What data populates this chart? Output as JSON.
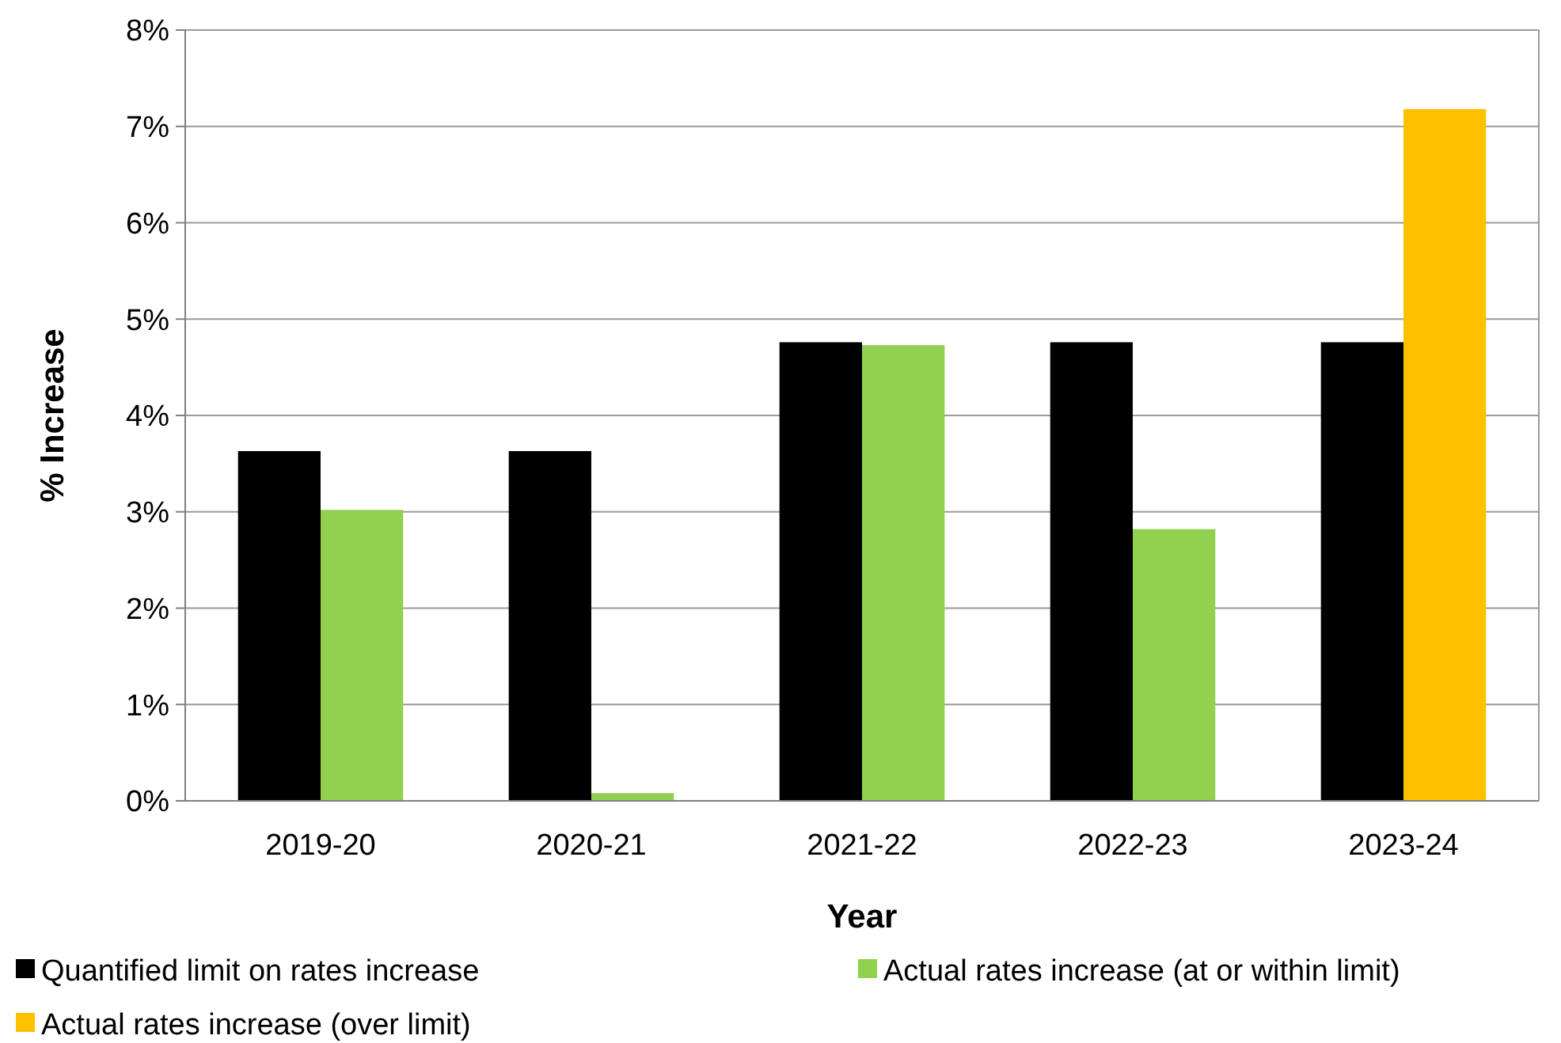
{
  "chart_data": {
    "type": "bar",
    "xlabel": "Year",
    "ylabel": "% Increase",
    "categories": [
      "2019-20",
      "2020-21",
      "2021-22",
      "2022-23",
      "2023-24"
    ],
    "series": [
      {
        "name": "Quantified limit on rates increase",
        "color": "#000000",
        "values": [
          3.63,
          3.63,
          4.76,
          4.76,
          4.76
        ]
      },
      {
        "name": "Actual rates increase (at or within limit)",
        "color": "#92d050",
        "values": [
          3.02,
          0.08,
          4.73,
          2.82,
          null
        ]
      },
      {
        "name": "Actual rates increase (over limit)",
        "color": "#ffc000",
        "values": [
          null,
          null,
          null,
          null,
          7.18
        ]
      }
    ],
    "ylim": [
      0,
      8
    ],
    "yticks": [
      {
        "value": 0,
        "label": "0%"
      },
      {
        "value": 1,
        "label": "1%"
      },
      {
        "value": 2,
        "label": "2%"
      },
      {
        "value": 3,
        "label": "3%"
      },
      {
        "value": 4,
        "label": "4%"
      },
      {
        "value": 5,
        "label": "5%"
      },
      {
        "value": 6,
        "label": "6%"
      },
      {
        "value": 7,
        "label": "7%"
      },
      {
        "value": 8,
        "label": "8%"
      }
    ],
    "grid": "y",
    "legend": "bottom"
  }
}
